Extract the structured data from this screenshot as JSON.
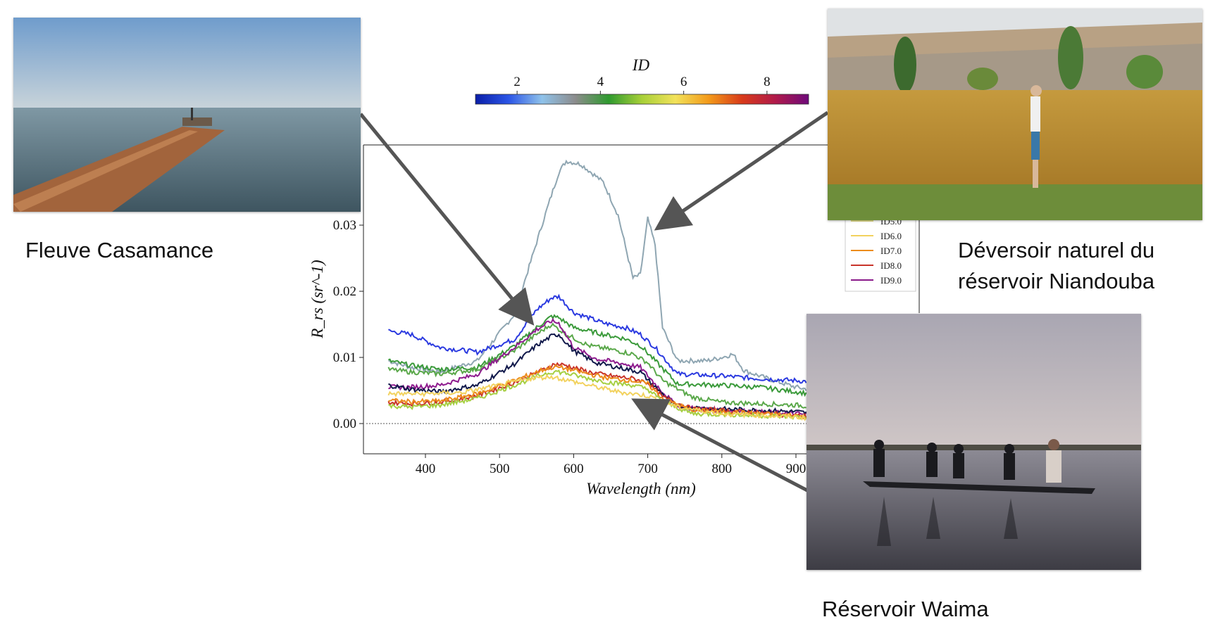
{
  "captions": {
    "casamance": "Fleuve Casamance",
    "niandouba_line1": "Déversoir naturel du",
    "niandouba_line2": "réservoir Niandouba",
    "waima": "Réservoir Waima"
  },
  "chart_data": {
    "type": "line",
    "title": "",
    "xlabel": "Wavelength (nm)",
    "ylabel": "R_rs (sr^-1)",
    "xlim": [
      330,
      950
    ],
    "ylim": [
      -0.0045,
      0.042
    ],
    "xticks": [
      400,
      500,
      600,
      700,
      800,
      900
    ],
    "yticks": [
      0.0,
      0.01,
      0.02,
      0.03
    ],
    "ytick_labels": [
      "0.00",
      "0.01",
      "0.02",
      "0.03"
    ],
    "xtick_labels": [
      "400",
      "500",
      "600",
      "700",
      "800",
      "900"
    ],
    "zero_line": true,
    "colorbar": {
      "label": "ID",
      "ticks": [
        "2",
        "4",
        "6",
        "8"
      ],
      "range": [
        1,
        9
      ],
      "colors": [
        "#0a1ea8",
        "#2b55e6",
        "#8fc2ea",
        "#8c8c8c",
        "#2f9a2f",
        "#a8d038",
        "#f2e25a",
        "#f39a1a",
        "#d83a1a",
        "#b01a4a",
        "#6e0a7a"
      ]
    },
    "legend": {
      "placement": "right",
      "entries": [
        {
          "label": "ID5.0",
          "color": "#e6e08a"
        },
        {
          "label": "ID6.0",
          "color": "#f2d25e"
        },
        {
          "label": "ID7.0",
          "color": "#ec8c1c"
        },
        {
          "label": "ID8.0",
          "color": "#c8342a"
        },
        {
          "label": "ID9.0",
          "color": "#8a1a8a"
        }
      ]
    },
    "series": [
      {
        "color": "#8fa6b2",
        "x": [
          350,
          380,
          420,
          470,
          520,
          560,
          580,
          590,
          610,
          640,
          660,
          680,
          690,
          700,
          710,
          720,
          740,
          780,
          800,
          815,
          830,
          870,
          900,
          950
        ],
        "y": [
          0.0095,
          0.0085,
          0.0078,
          0.0095,
          0.0165,
          0.031,
          0.038,
          0.0397,
          0.0392,
          0.0365,
          0.0315,
          0.022,
          0.0225,
          0.031,
          0.027,
          0.0145,
          0.0095,
          0.0095,
          0.01,
          0.0105,
          0.008,
          0.0065,
          0.0055,
          0.0045
        ]
      },
      {
        "color": "#2b3ae0",
        "x": [
          350,
          380,
          420,
          470,
          520,
          550,
          570,
          580,
          600,
          640,
          670,
          690,
          710,
          740,
          800,
          850,
          900,
          950
        ],
        "y": [
          0.014,
          0.0135,
          0.0115,
          0.0108,
          0.0127,
          0.0172,
          0.019,
          0.0192,
          0.0168,
          0.0152,
          0.0145,
          0.0135,
          0.0115,
          0.0075,
          0.0072,
          0.0068,
          0.0065,
          0.006
        ]
      },
      {
        "color": "#3a9a3a",
        "x": [
          350,
          380,
          420,
          470,
          520,
          550,
          570,
          580,
          600,
          640,
          670,
          690,
          710,
          740,
          800,
          850,
          900,
          950
        ],
        "y": [
          0.0095,
          0.0088,
          0.0082,
          0.0085,
          0.0117,
          0.0145,
          0.0162,
          0.016,
          0.0145,
          0.0135,
          0.0128,
          0.0118,
          0.0095,
          0.006,
          0.0058,
          0.0055,
          0.0048,
          0.004
        ]
      },
      {
        "color": "#5aa84a",
        "x": [
          350,
          380,
          420,
          470,
          520,
          550,
          570,
          590,
          620,
          650,
          680,
          700,
          720,
          760,
          800,
          900,
          950
        ],
        "y": [
          0.0082,
          0.0078,
          0.0075,
          0.0082,
          0.011,
          0.0135,
          0.015,
          0.0135,
          0.0118,
          0.0112,
          0.0105,
          0.0092,
          0.0065,
          0.004,
          0.0032,
          0.0028,
          0.0022
        ]
      },
      {
        "color": "#8e1b8e",
        "x": [
          350,
          380,
          420,
          470,
          520,
          550,
          570,
          580,
          600,
          630,
          660,
          690,
          710,
          740,
          800,
          900,
          950
        ],
        "y": [
          0.0055,
          0.0055,
          0.0058,
          0.0075,
          0.0115,
          0.0142,
          0.0155,
          0.0152,
          0.0115,
          0.0098,
          0.0092,
          0.0085,
          0.006,
          0.0025,
          0.002,
          0.0015,
          0.001
        ]
      },
      {
        "color": "#10184a",
        "x": [
          350,
          380,
          420,
          470,
          520,
          550,
          570,
          580,
          600,
          630,
          660,
          690,
          710,
          740,
          800,
          900,
          950
        ],
        "y": [
          0.0058,
          0.0052,
          0.0048,
          0.0058,
          0.009,
          0.0118,
          0.0132,
          0.0135,
          0.011,
          0.0092,
          0.0085,
          0.0078,
          0.0055,
          0.0025,
          0.0022,
          0.0018,
          0.0012
        ]
      },
      {
        "color": "#c8342a",
        "x": [
          350,
          380,
          420,
          470,
          520,
          560,
          575,
          590,
          620,
          650,
          680,
          700,
          720,
          760,
          800,
          900,
          950
        ],
        "y": [
          0.0032,
          0.003,
          0.0032,
          0.0042,
          0.0062,
          0.0082,
          0.009,
          0.0088,
          0.0078,
          0.0072,
          0.0068,
          0.0062,
          0.004,
          0.0022,
          0.002,
          0.0012,
          0.0008
        ]
      },
      {
        "color": "#ec8c1c",
        "x": [
          350,
          380,
          420,
          470,
          520,
          560,
          575,
          590,
          620,
          650,
          680,
          700,
          720,
          760,
          800,
          900,
          950
        ],
        "y": [
          0.0035,
          0.0033,
          0.0034,
          0.0045,
          0.0065,
          0.0082,
          0.0086,
          0.0083,
          0.0075,
          0.0068,
          0.0065,
          0.006,
          0.0038,
          0.002,
          0.0018,
          0.0012,
          0.0006
        ]
      },
      {
        "color": "#a6cf42",
        "x": [
          350,
          380,
          420,
          470,
          520,
          560,
          575,
          590,
          620,
          650,
          680,
          700,
          720,
          760,
          800,
          900,
          950
        ],
        "y": [
          0.0027,
          0.0025,
          0.0028,
          0.0038,
          0.0058,
          0.0075,
          0.0079,
          0.0076,
          0.0068,
          0.0062,
          0.0058,
          0.0052,
          0.0033,
          0.0015,
          0.0014,
          0.001,
          0.0005
        ]
      },
      {
        "color": "#f2d25e",
        "x": [
          350,
          400,
          450,
          500,
          540,
          570,
          590,
          620,
          660,
          700,
          740,
          800,
          900,
          950
        ],
        "y": [
          0.0045,
          0.0045,
          0.0047,
          0.0058,
          0.0068,
          0.0071,
          0.0066,
          0.0058,
          0.0048,
          0.0042,
          0.0025,
          0.0015,
          0.001,
          0.0006
        ]
      }
    ]
  },
  "photos": {
    "casamance": {
      "colors": [
        "#7fa6c9",
        "#5a7a88",
        "#b5734a"
      ]
    },
    "niandouba": {
      "colors": [
        "#c9a14a",
        "#b9883a",
        "#6f8a3a"
      ]
    },
    "waima": {
      "colors": [
        "#b8b4bc",
        "#3a3a44",
        "#1a1a1e"
      ]
    }
  }
}
